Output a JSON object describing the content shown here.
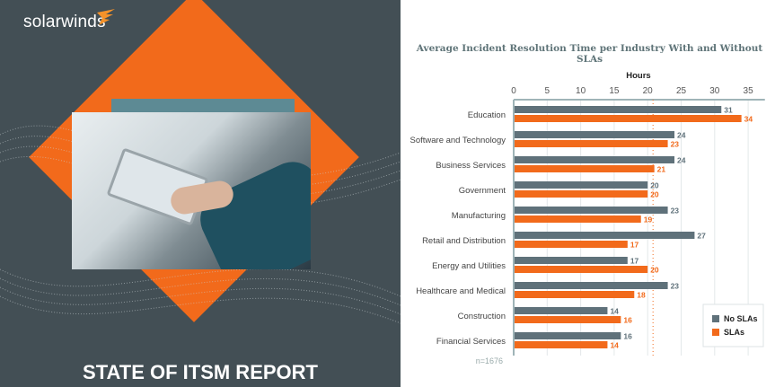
{
  "brand": {
    "logo_text": "solarwinds",
    "report_title": "STATE OF ITSM REPORT"
  },
  "colors": {
    "no_sla": "#5f717a",
    "sla": "#f26a1b",
    "panel": "#434f55",
    "average_line": "#f26a1b"
  },
  "chart_data": {
    "type": "bar",
    "orientation": "horizontal",
    "title": "Average Incident Resolution Time per Industry With and Without SLAs",
    "xlabel": "Hours",
    "xlim": [
      0,
      37.5
    ],
    "xticks": [
      0,
      5,
      10,
      15,
      20,
      25,
      30,
      35
    ],
    "grid": true,
    "legend": "bottom-right",
    "categories": [
      "Education",
      "Software and Technology",
      "Business Services",
      "Government",
      "Manufacturing",
      "Retail and Distribution",
      "Energy and Utilities",
      "Healthcare and Medical",
      "Construction",
      "Financial Services"
    ],
    "series": [
      {
        "name": "No SLAs",
        "values": [
          31,
          24,
          24,
          20,
          23,
          27,
          17,
          23,
          14,
          16
        ]
      },
      {
        "name": "SLAs",
        "values": [
          34,
          23,
          21,
          20,
          19,
          17,
          20,
          18,
          16,
          14
        ]
      }
    ],
    "reference_line": 20.8,
    "note": "n=1676"
  }
}
